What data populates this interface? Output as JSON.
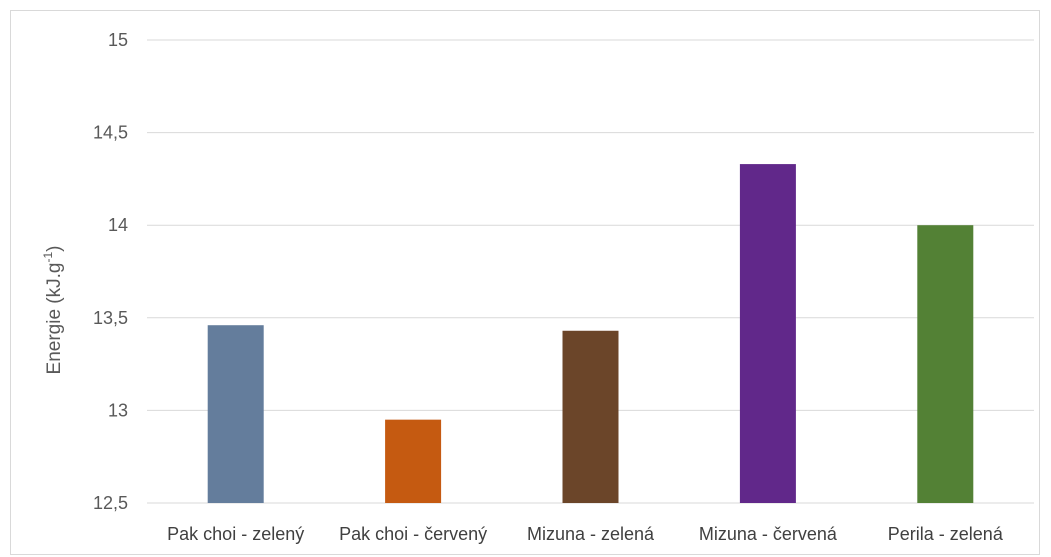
{
  "chart_data": {
    "type": "bar",
    "title": "",
    "xlabel": "",
    "ylabel": "Energie  (kJ.g",
    "ylabel_superscript": "-1",
    "ylabel_suffix": ")",
    "categories": [
      "Pak choi - zelený",
      "Pak choi - červený",
      "Mizuna - zelená",
      "Mizuna - červená",
      "Perila - zelená"
    ],
    "values": [
      13.46,
      12.95,
      13.43,
      14.33,
      14.0
    ],
    "colors": [
      "#647d9c",
      "#c55a11",
      "#6b4529",
      "#61288a",
      "#538135"
    ],
    "ylim": [
      12.5,
      15
    ],
    "yticks": [
      12.5,
      13,
      13.5,
      14,
      14.5,
      15
    ],
    "ytick_labels": [
      "12,5",
      "13",
      "13,5",
      "14",
      "14,5",
      "15"
    ],
    "grid": true,
    "legend": "none"
  }
}
